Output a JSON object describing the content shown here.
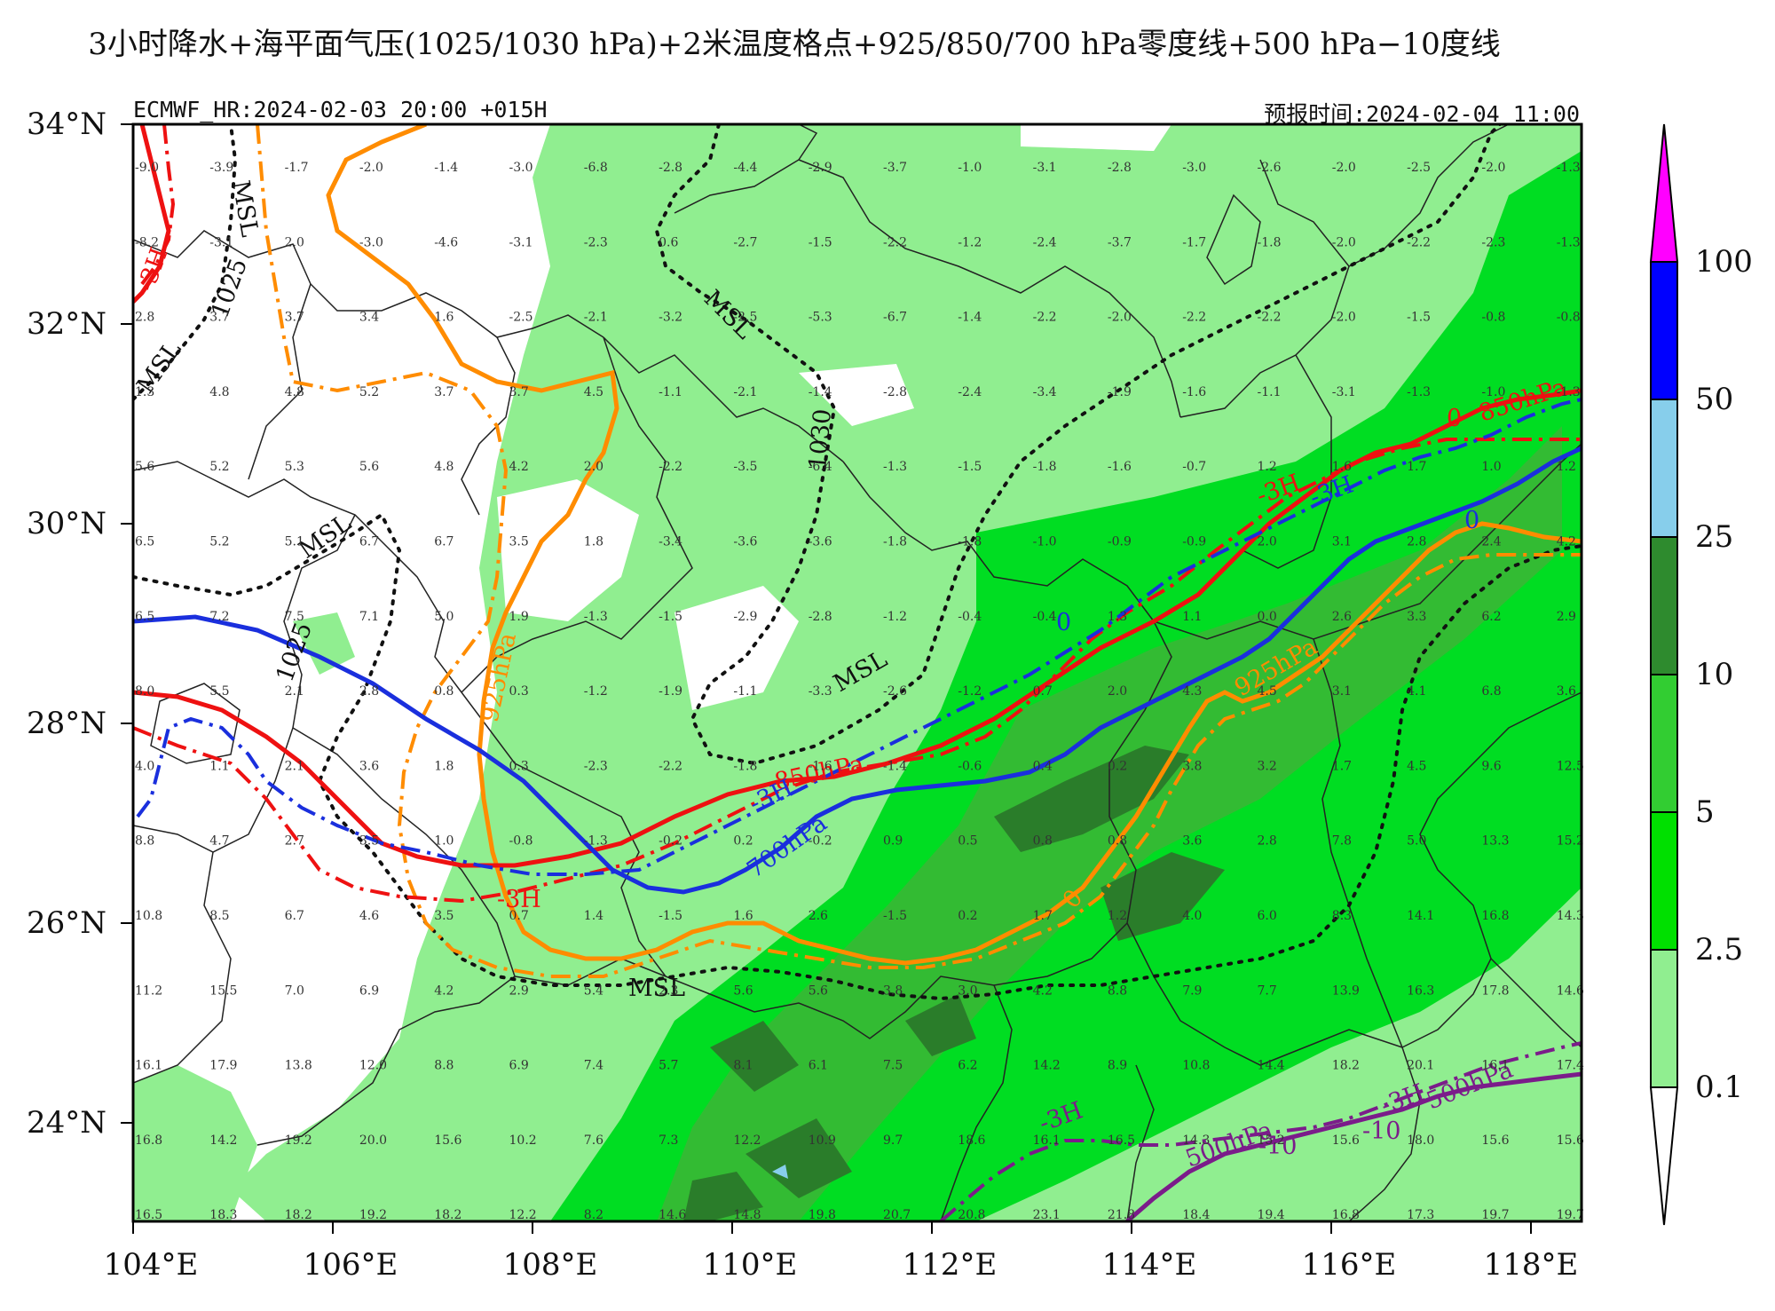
{
  "title": "3小时降水+海平面气压(1025/1030 hPa)+2米温度格点+925/850/700 hPa零度线+500 hPa−10度线",
  "model_info": "ECMWF_HR:2024-02-03 20:00 +015H",
  "forecast_time": "预报时间:2024-02-04 11:00",
  "lat_labels": [
    "34°N",
    "32°N",
    "30°N",
    "28°N",
    "26°N",
    "24°N"
  ],
  "lon_labels": [
    "104°E",
    "106°E",
    "108°E",
    "110°E",
    "112°E",
    "114°E",
    "116°E",
    "118°E"
  ],
  "colorbar": {
    "labels": [
      "100",
      "50",
      "25",
      "10",
      "5",
      "2.5",
      "0.1"
    ],
    "colors": {
      "top": "#ff00ff",
      "50-100": "#0000ff",
      "25-50": "#87ceeb",
      "10-25": "#2e8b2e",
      "5-10": "#32cd32",
      "2.5-5": "#00e000",
      "0.1-2.5": "#90ee90",
      "below": "#ffffff"
    }
  },
  "contour_labels": {
    "msl": [
      "MSL",
      "MSL",
      "MSL",
      "MSL",
      "MSL",
      "MSL"
    ],
    "p1025": [
      "1025",
      "1025"
    ],
    "p1030": [
      "1030"
    ],
    "t925": [
      "925hPa",
      "925hPa"
    ],
    "t850": [
      "850hPa",
      "850hPa"
    ],
    "t700": [
      "700hPa"
    ],
    "t500": [
      "500hPa",
      "500hPa"
    ],
    "zero": [
      "0",
      "0",
      "0",
      "0"
    ],
    "minus10": [
      "-10",
      "-10"
    ],
    "h3": [
      "-3H",
      "-3H",
      "-3H",
      "-3H",
      "-3H",
      "-3H",
      "-3H"
    ]
  },
  "grid_values": [
    [
      "-9.0",
      "-3.9",
      "-1.7",
      "-2.0",
      "-1.4",
      "-3.0",
      "-6.8",
      "-2.8",
      "-4.4",
      "-2.9",
      "-3.7",
      "-1.0",
      "-3.1",
      "-2.8",
      "-3.0",
      "-2.6",
      "-2.0",
      "-2.5",
      "-2.0",
      "-1.3"
    ],
    [
      "-8.2",
      "-3.1",
      "2.0",
      "-3.0",
      "-4.6",
      "-3.1",
      "-2.3",
      "0.6",
      "-2.7",
      "-1.5",
      "-2.2",
      "-1.2",
      "-2.4",
      "-3.7",
      "-1.7",
      "-1.8",
      "-2.0",
      "-2.2",
      "-2.3",
      "-1.3"
    ],
    [
      "2.8",
      "3.7",
      "3.7",
      "3.4",
      "1.6",
      "-2.5",
      "-2.1",
      "-3.2",
      "-2.5",
      "-5.3",
      "-6.7",
      "-1.4",
      "-2.2",
      "-2.0",
      "-2.2",
      "-2.2",
      "-2.0",
      "-1.5",
      "-0.8",
      "-0.8"
    ],
    [
      "1.3",
      "4.8",
      "4.8",
      "5.2",
      "3.7",
      "3.7",
      "4.5",
      "-1.1",
      "-2.1",
      "-1.4",
      "-2.8",
      "-2.4",
      "-3.4",
      "-1.9",
      "-1.6",
      "-1.1",
      "-3.1",
      "-1.3",
      "-1.0",
      "-1.3"
    ],
    [
      "5.6",
      "5.2",
      "5.3",
      "5.6",
      "4.8",
      "4.2",
      "2.0",
      "-2.2",
      "-3.5",
      "-6.4",
      "-1.3",
      "-1.5",
      "-1.8",
      "-1.6",
      "-0.7",
      "1.2",
      "1.6",
      "1.7",
      "1.0",
      "1.2"
    ],
    [
      "6.5",
      "5.2",
      "5.1",
      "6.7",
      "6.7",
      "3.5",
      "1.8",
      "-3.4",
      "-3.6",
      "-3.6",
      "-1.8",
      "-1.8",
      "-1.0",
      "-0.9",
      "-0.9",
      "2.0",
      "3.1",
      "2.8",
      "2.4",
      "4.2"
    ],
    [
      "6.5",
      "7.2",
      "7.5",
      "7.1",
      "5.0",
      "1.9",
      "-1.3",
      "-1.5",
      "-2.9",
      "-2.8",
      "-1.2",
      "-0.4",
      "-0.4",
      "1.3",
      "1.1",
      "0.0",
      "2.6",
      "3.3",
      "6.2",
      "2.9"
    ],
    [
      "8.0",
      "5.5",
      "2.1",
      "2.8",
      "0.8",
      "0.3",
      "-1.2",
      "-1.9",
      "-1.1",
      "-3.3",
      "-2.6",
      "-1.2",
      "0.7",
      "2.0",
      "4.3",
      "4.5",
      "3.1",
      "4.1",
      "6.8",
      "3.6"
    ],
    [
      "4.0",
      "1.1",
      "2.1",
      "3.6",
      "1.8",
      "0.3",
      "-2.3",
      "-2.2",
      "-1.8",
      "-1.6",
      "-1.4",
      "-0.6",
      "0.4",
      "0.2",
      "3.8",
      "3.2",
      "1.7",
      "4.5",
      "9.6",
      "12.5"
    ],
    [
      "8.8",
      "4.7",
      "2.7",
      "3.5",
      "1.0",
      "-0.8",
      "-1.3",
      "-0.2",
      "0.2",
      "-0.2",
      "0.9",
      "0.5",
      "0.8",
      "0.8",
      "3.6",
      "2.8",
      "7.8",
      "5.0",
      "13.3",
      "15.2"
    ],
    [
      "10.8",
      "8.5",
      "6.7",
      "4.6",
      "3.5",
      "0.7",
      "1.4",
      "-1.5",
      "1.6",
      "2.6",
      "-1.5",
      "0.2",
      "1.7",
      "1.2",
      "4.0",
      "6.0",
      "8.3",
      "14.1",
      "16.8",
      "14.3"
    ],
    [
      "11.2",
      "15.5",
      "7.0",
      "6.9",
      "4.2",
      "2.9",
      "5.4",
      "2.3",
      "5.6",
      "5.6",
      "3.8",
      "3.0",
      "4.2",
      "8.8",
      "7.9",
      "7.7",
      "13.9",
      "16.3",
      "17.8",
      "14.6"
    ],
    [
      "16.1",
      "17.9",
      "13.8",
      "12.0",
      "8.8",
      "6.9",
      "7.4",
      "5.7",
      "8.1",
      "6.1",
      "7.5",
      "6.2",
      "14.2",
      "8.9",
      "10.8",
      "14.4",
      "18.2",
      "20.1",
      "16.1",
      "17.4"
    ],
    [
      "16.8",
      "14.2",
      "19.2",
      "20.0",
      "15.6",
      "10.2",
      "7.6",
      "7.3",
      "12.2",
      "10.9",
      "9.7",
      "18.6",
      "16.1",
      "16.5",
      "14.3",
      "15.2",
      "15.6",
      "18.0",
      "15.6",
      "15.6"
    ],
    [
      "16.5",
      "18.3",
      "18.2",
      "19.2",
      "18.2",
      "12.2",
      "8.2",
      "14.6",
      "14.8",
      "19.8",
      "20.7",
      "20.8",
      "23.1",
      "21.8",
      "18.4",
      "19.4",
      "16.8",
      "17.3",
      "19.7",
      "19.7"
    ]
  ]
}
